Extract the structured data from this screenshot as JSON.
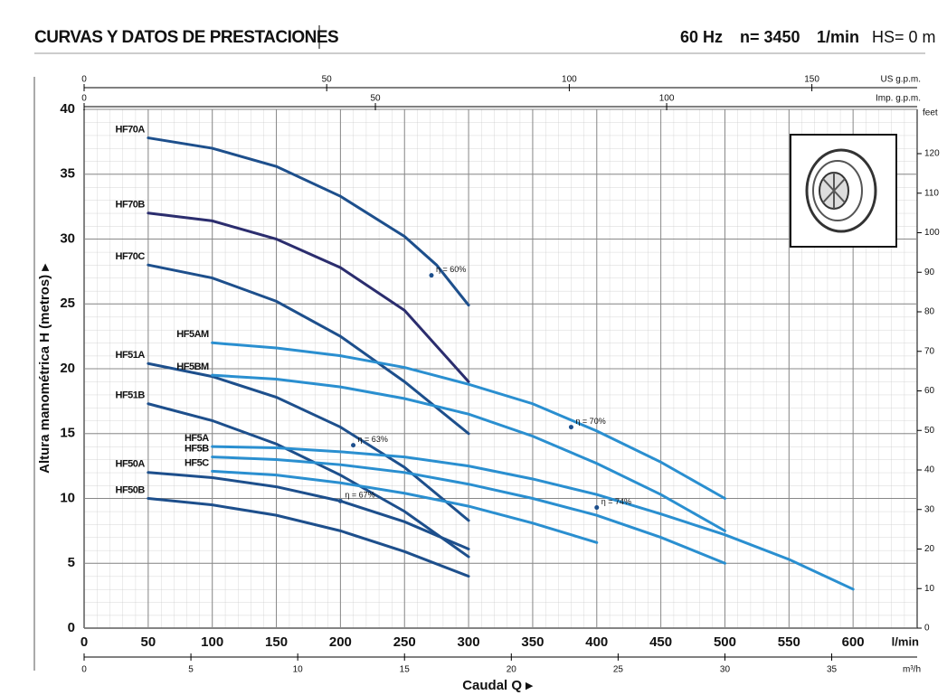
{
  "header": {
    "title": "CURVAS Y DATOS DE PRESTACIONES",
    "frequency": "60 Hz",
    "speed": "n= 3450",
    "speed_unit": "1/min",
    "suction": "HS= 0 m"
  },
  "chart_data": {
    "type": "line",
    "xlabel": "Caudal Q ▸",
    "ylabel": "Altura manométrica H (metros) ▸",
    "x_unit": "l/min",
    "xlim": [
      0,
      650
    ],
    "xticks": [
      0,
      50,
      100,
      150,
      200,
      250,
      300,
      350,
      400,
      450,
      500,
      550,
      600
    ],
    "ylim": [
      0,
      40
    ],
    "yticks": [
      0,
      5,
      10,
      15,
      20,
      25,
      30,
      35,
      40
    ],
    "grid": true,
    "us_gpm_unit": "US g.p.m.",
    "us_gpm_lim": [
      0,
      171.7
    ],
    "us_gpm_ticks": [
      0,
      50,
      100,
      150
    ],
    "imp_gpm_unit": "Imp. g.p.m.",
    "imp_gpm_lim": [
      0,
      143
    ],
    "imp_gpm_ticks": [
      0,
      50,
      100
    ],
    "m3h_unit": "m³/h",
    "m3h_lim": [
      0,
      39
    ],
    "m3h_ticks": [
      0,
      5,
      10,
      15,
      20,
      25,
      30,
      35
    ],
    "feet_unit": "feet",
    "y2lim": [
      0,
      131.2
    ],
    "y2ticks": [
      0,
      10,
      20,
      30,
      40,
      50,
      60,
      70,
      80,
      90,
      100,
      110,
      120
    ],
    "series": [
      {
        "name": "HF70A",
        "color": "#1d4f8c",
        "x": [
          50,
          100,
          150,
          200,
          250,
          275,
          300
        ],
        "values": [
          37.8,
          37.0,
          35.6,
          33.3,
          30.2,
          28.0,
          24.9
        ]
      },
      {
        "name": "HF70B",
        "color": "#2b2d6e",
        "x": [
          50,
          100,
          150,
          200,
          250,
          300
        ],
        "values": [
          32.0,
          31.4,
          30.0,
          27.8,
          24.5,
          19.0
        ]
      },
      {
        "name": "HF70C",
        "color": "#1d4f8c",
        "x": [
          50,
          100,
          150,
          200,
          250,
          300
        ],
        "values": [
          28.0,
          27.0,
          25.2,
          22.5,
          19.0,
          15.0
        ]
      },
      {
        "name": "HF51A",
        "color": "#1d4f8c",
        "x": [
          50,
          100,
          150,
          200,
          250,
          300
        ],
        "values": [
          20.4,
          19.4,
          17.8,
          15.5,
          12.4,
          8.3
        ]
      },
      {
        "name": "HF51B",
        "color": "#1d4f8c",
        "x": [
          50,
          100,
          150,
          200,
          250,
          300
        ],
        "values": [
          17.3,
          16.0,
          14.2,
          11.8,
          9.0,
          5.5
        ]
      },
      {
        "name": "HF50A",
        "color": "#1d4f8c",
        "x": [
          50,
          100,
          150,
          200,
          250,
          300
        ],
        "values": [
          12.0,
          11.6,
          10.9,
          9.8,
          8.2,
          6.1
        ]
      },
      {
        "name": "HF50B",
        "color": "#1d4f8c",
        "x": [
          50,
          100,
          150,
          200,
          250,
          300
        ],
        "values": [
          10.0,
          9.5,
          8.7,
          7.5,
          5.9,
          4.0
        ]
      },
      {
        "name": "HF5AM",
        "color": "#2a8fd0",
        "x": [
          100,
          150,
          200,
          250,
          300,
          350,
          400,
          450,
          500
        ],
        "values": [
          22.0,
          21.6,
          21.0,
          20.1,
          18.8,
          17.3,
          15.2,
          12.8,
          10.0
        ]
      },
      {
        "name": "HF5BM",
        "color": "#2a8fd0",
        "x": [
          100,
          150,
          200,
          250,
          300,
          350,
          400,
          450,
          500
        ],
        "values": [
          19.5,
          19.2,
          18.6,
          17.7,
          16.5,
          14.8,
          12.7,
          10.3,
          7.5
        ]
      },
      {
        "name": "HF5A",
        "color": "#2a8fd0",
        "x": [
          100,
          150,
          200,
          250,
          300,
          350,
          400,
          450,
          500,
          550,
          600
        ],
        "values": [
          14.0,
          13.9,
          13.6,
          13.2,
          12.5,
          11.5,
          10.3,
          8.8,
          7.2,
          5.3,
          3.0
        ]
      },
      {
        "name": "HF5B",
        "color": "#2a8fd0",
        "x": [
          100,
          150,
          200,
          250,
          300,
          350,
          400,
          450,
          500
        ],
        "values": [
          13.2,
          13.0,
          12.6,
          12.0,
          11.1,
          10.0,
          8.7,
          7.0,
          5.0
        ]
      },
      {
        "name": "HF5C",
        "color": "#2a8fd0",
        "x": [
          100,
          150,
          200,
          250,
          300,
          350,
          400
        ],
        "values": [
          12.1,
          11.8,
          11.2,
          10.4,
          9.4,
          8.1,
          6.6
        ]
      }
    ],
    "annotations": [
      {
        "text": "η = 60%",
        "x": 271,
        "y": 27.2
      },
      {
        "text": "η = 63%",
        "x": 210,
        "y": 14.1
      },
      {
        "text": "η = 67%",
        "x": 200,
        "y": 9.8
      },
      {
        "text": "η = 70%",
        "x": 380,
        "y": 15.5
      },
      {
        "text": "η = 74%",
        "x": 400,
        "y": 9.3
      }
    ]
  }
}
